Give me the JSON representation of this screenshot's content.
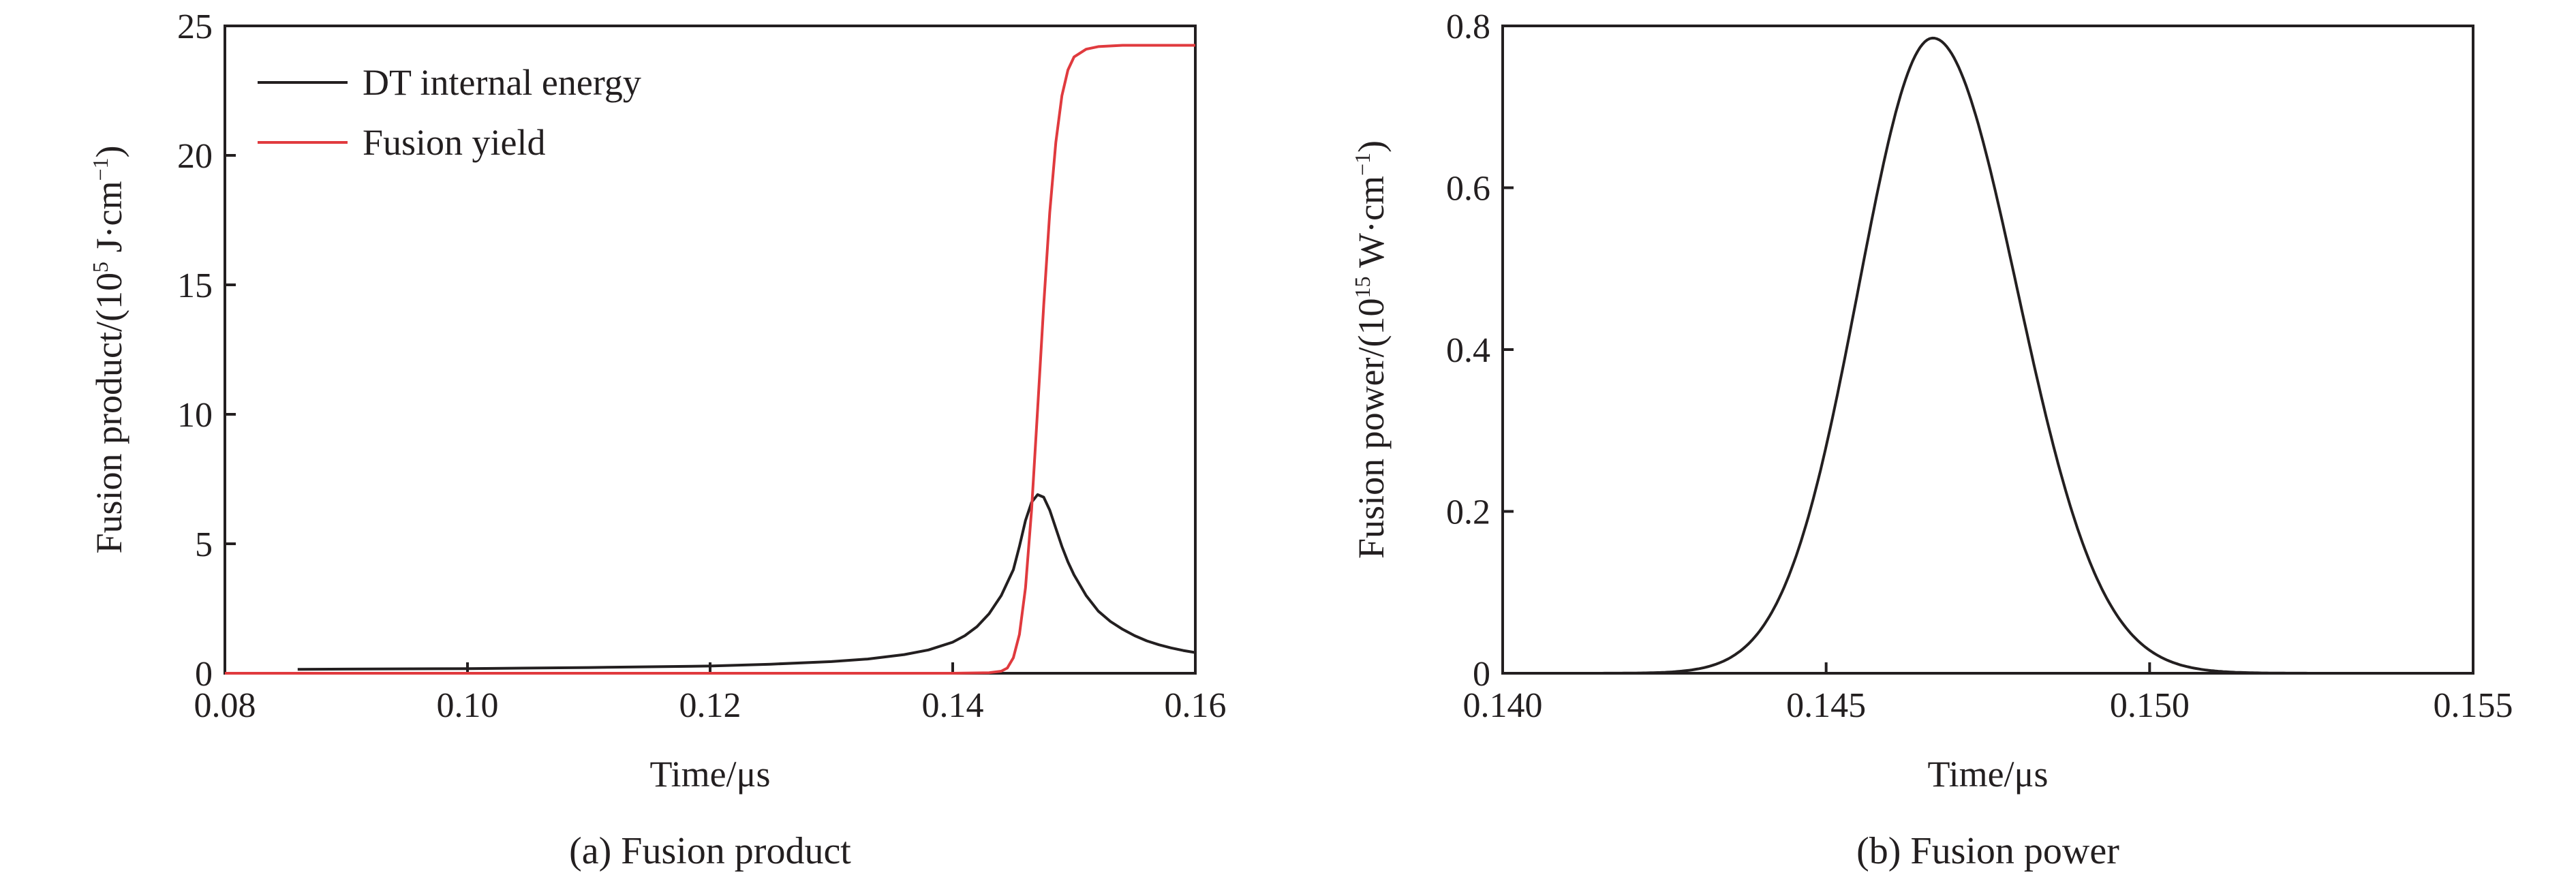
{
  "chart_data": [
    {
      "type": "line",
      "caption": "(a) Fusion product",
      "xlabel": "Time/μs",
      "ylabel": {
        "pre": "Fusion product/(10",
        "sup1": "5",
        "mid": " J·cm",
        "sup2": "−1",
        "post": ")"
      },
      "xlim": [
        0.08,
        0.16
      ],
      "ylim": [
        0,
        25
      ],
      "xticks": [
        "0.08",
        "0.10",
        "0.12",
        "0.14",
        "0.16"
      ],
      "yticks": [
        "0",
        "5",
        "10",
        "15",
        "20",
        "25"
      ],
      "grid": false,
      "legend": {
        "placement": "top-left"
      },
      "series": [
        {
          "name": "DT internal energy",
          "color": "#231f20",
          "x": [
            0.086,
            0.09,
            0.1,
            0.11,
            0.12,
            0.125,
            0.13,
            0.133,
            0.136,
            0.138,
            0.14,
            0.141,
            0.142,
            0.143,
            0.144,
            0.145,
            0.1455,
            0.146,
            0.1465,
            0.147,
            0.1475,
            0.148,
            0.1485,
            0.149,
            0.1495,
            0.15,
            0.151,
            0.152,
            0.153,
            0.154,
            0.155,
            0.156,
            0.157,
            0.158,
            0.159,
            0.16
          ],
          "y": [
            0.15,
            0.16,
            0.18,
            0.22,
            0.28,
            0.35,
            0.45,
            0.55,
            0.72,
            0.9,
            1.2,
            1.45,
            1.8,
            2.3,
            3.0,
            4.0,
            4.9,
            5.9,
            6.6,
            6.9,
            6.8,
            6.3,
            5.6,
            4.9,
            4.3,
            3.8,
            3.0,
            2.4,
            2.0,
            1.7,
            1.45,
            1.25,
            1.1,
            0.98,
            0.88,
            0.8
          ]
        },
        {
          "name": "Fusion yield",
          "color": "#e03a3e",
          "x": [
            0.08,
            0.14,
            0.143,
            0.144,
            0.1445,
            0.145,
            0.1455,
            0.146,
            0.1465,
            0.147,
            0.1475,
            0.148,
            0.1485,
            0.149,
            0.1495,
            0.15,
            0.151,
            0.152,
            0.154,
            0.156,
            0.16
          ],
          "y": [
            0,
            0,
            0.02,
            0.08,
            0.2,
            0.6,
            1.5,
            3.3,
            6.3,
            10.2,
            14.2,
            17.8,
            20.5,
            22.3,
            23.3,
            23.8,
            24.1,
            24.2,
            24.25,
            24.25,
            24.25
          ]
        }
      ]
    },
    {
      "type": "line",
      "caption": "(b)  Fusion power",
      "xlabel": "Time/μs",
      "ylabel": {
        "pre": "Fusion power/(10",
        "sup1": "15",
        "mid": " W·cm",
        "sup2": "−1",
        "post": ")"
      },
      "xlim": [
        0.14,
        0.155
      ],
      "ylim": [
        0,
        0.8
      ],
      "xticks": [
        "0.140",
        "0.145",
        "0.150",
        "0.155"
      ],
      "yticks": [
        "0",
        "0.2",
        "0.4",
        "0.6",
        "0.8"
      ],
      "grid": false,
      "series": [
        {
          "color": "#231f20",
          "peak": {
            "x": 0.14665,
            "y": 0.785
          },
          "sigma_left": 0.00115,
          "sigma_right": 0.0013
        }
      ]
    }
  ]
}
